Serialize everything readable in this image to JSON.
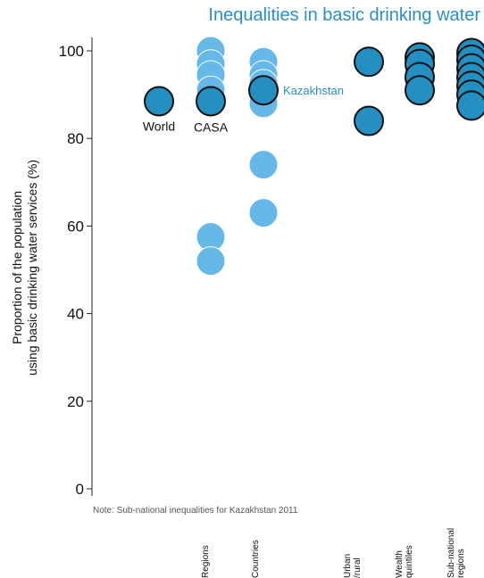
{
  "chart_data": {
    "type": "scatter",
    "title": "Inequalities in basic drinking water",
    "ylabel": "Proportion of the population using basic drinking water services (%)",
    "ylim": [
      0,
      100
    ],
    "yticks": [
      0,
      20,
      40,
      60,
      80,
      100
    ],
    "grid": false,
    "note": "Note: Sub-national inequalities for Kazakhstan  2011",
    "colors": {
      "light": "#66b8e8",
      "dark": "#2490c1",
      "title": "#2a8fc4",
      "highlight_text": "#2a8fc4"
    },
    "categories": [
      {
        "key": "world",
        "label": "",
        "group_label": "World",
        "values": [
          88.5
        ]
      },
      {
        "key": "casa",
        "label": "",
        "group_label": "CASA",
        "values": [
          88.5
        ]
      },
      {
        "key": "regions",
        "label": "Regions",
        "values": [
          100,
          97,
          94.5,
          91,
          57.5,
          52
        ]
      },
      {
        "key": "countries",
        "label": "Countries",
        "values": [
          97.5,
          94.5,
          92.5,
          90.5,
          89.5,
          88,
          74,
          63
        ]
      },
      {
        "key": "urban_rural",
        "label": "Urban /rural",
        "values": [
          97.5,
          84
        ]
      },
      {
        "key": "wealth",
        "label": "Wealth quintiles",
        "values": [
          98.5,
          97,
          94,
          91
        ]
      },
      {
        "key": "subnational",
        "label": "Sub-national regions",
        "values": [
          99.5,
          98,
          96,
          94,
          92,
          90,
          87.5
        ]
      }
    ],
    "highlight": {
      "label": "Kazakhstan",
      "category": "countries",
      "value": 91
    },
    "casa_in_regions": {
      "category": "regions",
      "value": 88.5
    }
  }
}
